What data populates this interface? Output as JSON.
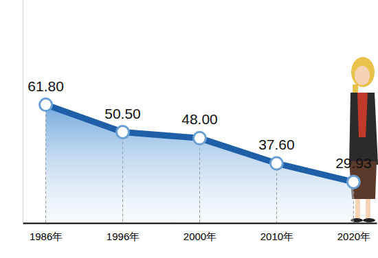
{
  "chart_data": {
    "type": "line",
    "categories": [
      "1986年",
      "1996年",
      "2000年",
      "2010年",
      "2020年"
    ],
    "values": [
      61.8,
      50.5,
      48.0,
      37.6,
      29.93
    ],
    "value_labels": [
      "61.80",
      "50.50",
      "48.00",
      "37.60",
      "29.93"
    ],
    "data_labels": true,
    "color": "#1f5fa8",
    "marker": "circle",
    "ylim": [
      13,
      105
    ],
    "tick_labels": "x",
    "grid": false
  }
}
